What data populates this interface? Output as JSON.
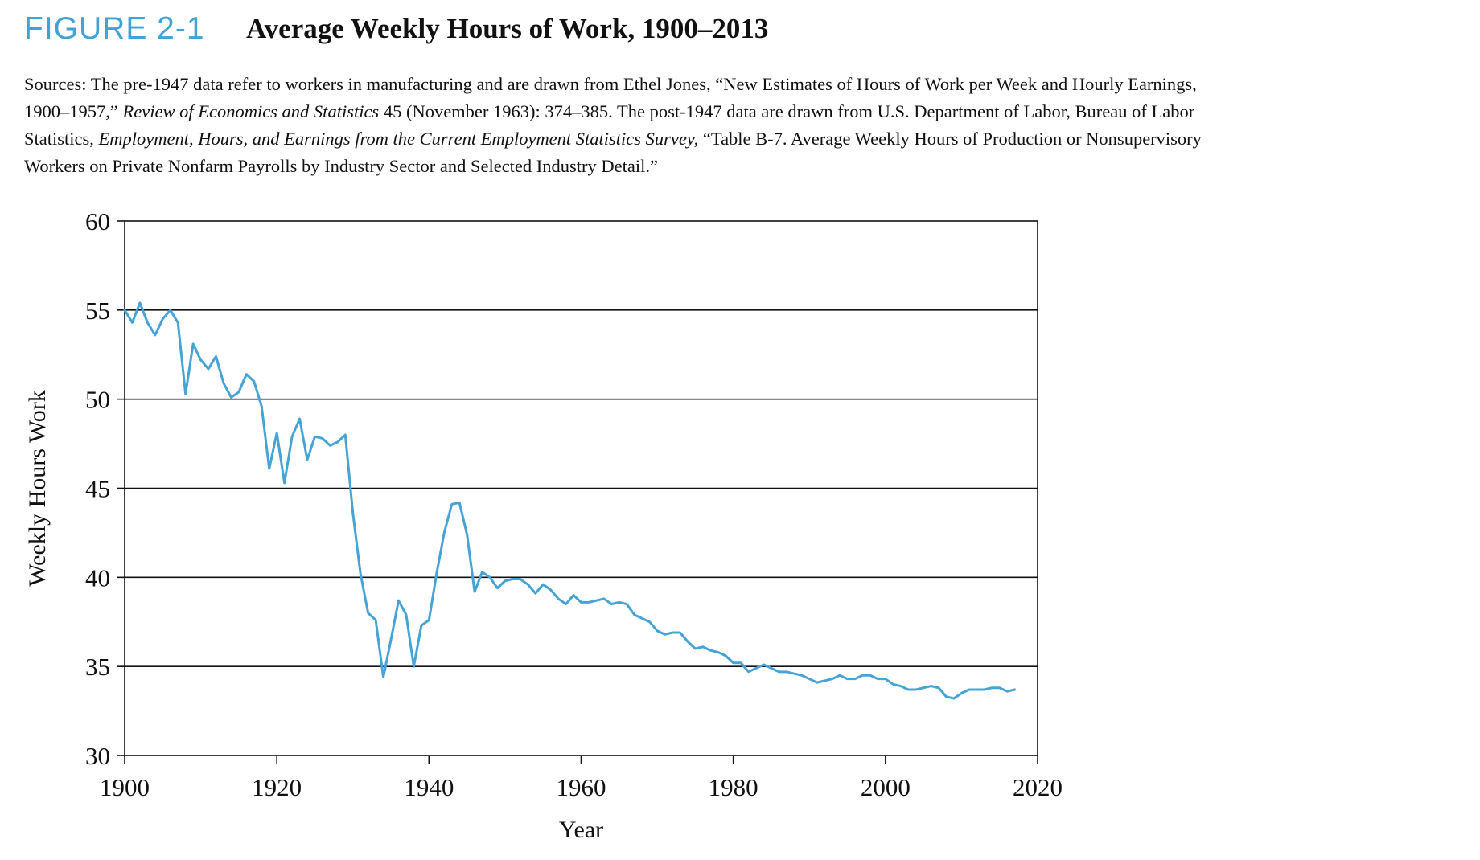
{
  "figure": {
    "label": "FIGURE 2-1",
    "title": "Average Weekly Hours of Work, 1900–2013",
    "accent_color": "#3ea3d6"
  },
  "sources": {
    "line1": "Sources: The pre-1947 data refer to workers in manufacturing and are drawn from Ethel Jones, “New Estimates of Hours of Work per Week and Hourly Earnings,",
    "line2_a": "1900–1957,” ",
    "line2_b": "Review of Economics and Statistics",
    "line2_c": " 45 (November 1963): 374–385. The post-1947 data are drawn from U.S. Department of Labor, Bureau of Labor",
    "line3_a": "Statistics, ",
    "line3_b": "Employment, Hours, and Earnings from the Current Employment Statistics Survey,",
    "line3_c": " “Table B-7. Average Weekly Hours of Production or Nonsupervisory",
    "line4": "Workers on Private Nonfarm Payrolls by Industry Sector and Selected Industry Detail.”"
  },
  "chart_data": {
    "type": "line",
    "xlabel": "Year",
    "ylabel": "Weekly Hours Work",
    "xlim": [
      1900,
      2020
    ],
    "ylim": [
      30,
      60
    ],
    "xticks": [
      1900,
      1920,
      1940,
      1960,
      1980,
      2000,
      2020
    ],
    "yticks": [
      30,
      35,
      40,
      45,
      50,
      55,
      60
    ],
    "grid": "horizontal",
    "legend": "none",
    "line_color": "#45a3d6",
    "series": [
      {
        "x": [
          1900,
          1901,
          1902,
          1903,
          1904,
          1905,
          1906,
          1907,
          1908,
          1909,
          1910,
          1911,
          1912,
          1913,
          1914,
          1915,
          1916,
          1917,
          1918,
          1919,
          1920,
          1921,
          1922,
          1923,
          1924,
          1925,
          1926,
          1927,
          1928,
          1929,
          1930,
          1931,
          1932,
          1933,
          1934,
          1935,
          1936,
          1937,
          1938,
          1939,
          1940,
          1941,
          1942,
          1943,
          1944,
          1945,
          1946,
          1947,
          1948,
          1949,
          1950,
          1951,
          1952,
          1953,
          1954,
          1955,
          1956,
          1957,
          1958,
          1959,
          1960,
          1961,
          1962,
          1963,
          1964,
          1965,
          1966,
          1967,
          1968,
          1969,
          1970,
          1971,
          1972,
          1973,
          1974,
          1975,
          1976,
          1977,
          1978,
          1979,
          1980,
          1981,
          1982,
          1983,
          1984,
          1985,
          1986,
          1987,
          1988,
          1989,
          1990,
          1991,
          1992,
          1993,
          1994,
          1995,
          1996,
          1997,
          1998,
          1999,
          2000,
          2001,
          2002,
          2003,
          2004,
          2005,
          2006,
          2007,
          2008,
          2009,
          2010,
          2011,
          2012,
          2013,
          2014,
          2015,
          2016,
          2017
        ],
        "y": [
          55.0,
          54.3,
          55.4,
          54.3,
          53.6,
          54.5,
          55.0,
          54.3,
          50.3,
          53.1,
          52.2,
          51.7,
          52.4,
          50.9,
          50.1,
          50.4,
          51.4,
          51.0,
          49.6,
          46.1,
          48.1,
          45.3,
          47.9,
          48.9,
          46.6,
          47.9,
          47.8,
          47.4,
          47.6,
          48.0,
          43.6,
          40.2,
          38.0,
          37.6,
          34.4,
          36.5,
          38.7,
          37.9,
          35.0,
          37.3,
          37.6,
          40.2,
          42.5,
          44.1,
          44.2,
          42.4,
          39.2,
          40.3,
          40.0,
          39.4,
          39.8,
          39.9,
          39.9,
          39.6,
          39.1,
          39.6,
          39.3,
          38.8,
          38.5,
          39.0,
          38.6,
          38.6,
          38.7,
          38.8,
          38.5,
          38.6,
          38.5,
          37.9,
          37.7,
          37.5,
          37.0,
          36.8,
          36.9,
          36.9,
          36.4,
          36.0,
          36.1,
          35.9,
          35.8,
          35.6,
          35.2,
          35.2,
          34.7,
          34.9,
          35.1,
          34.9,
          34.7,
          34.7,
          34.6,
          34.5,
          34.3,
          34.1,
          34.2,
          34.3,
          34.5,
          34.3,
          34.3,
          34.5,
          34.5,
          34.3,
          34.3,
          34.0,
          33.9,
          33.7,
          33.7,
          33.8,
          33.9,
          33.8,
          33.3,
          33.2,
          33.5,
          33.7,
          33.7,
          33.7,
          33.8,
          33.8,
          33.6,
          33.7
        ]
      }
    ]
  }
}
